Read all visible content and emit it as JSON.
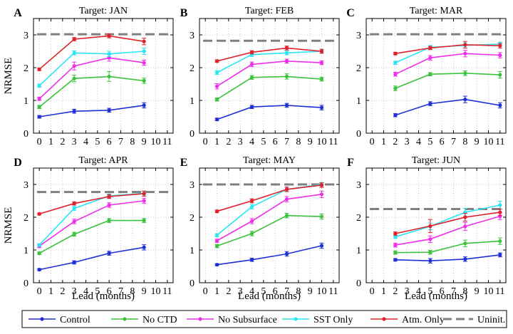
{
  "figure": {
    "ylabel": "NRMSE",
    "xlabel": "Lead (months)",
    "legend": [
      {
        "name": "Control",
        "color": "#1f2fd6",
        "style": "marker"
      },
      {
        "name": "No CTD",
        "color": "#3cc23c",
        "style": "marker"
      },
      {
        "name": "No Subsurface",
        "color": "#ee2ee8",
        "style": "marker"
      },
      {
        "name": "SST Only",
        "color": "#29e6f2",
        "style": "marker"
      },
      {
        "name": "Atm. Only",
        "color": "#e0202a",
        "style": "marker"
      },
      {
        "name": "Uninit.",
        "color": "#808080",
        "style": "dashed"
      }
    ]
  },
  "chart_data": [
    {
      "type": "line",
      "panel": "A",
      "title": "Target: JAN",
      "xlim": [
        -0.5,
        11.5
      ],
      "ylim": [
        0,
        3.5
      ],
      "xticks": [
        "0",
        "1",
        "2",
        "3",
        "4",
        "5",
        "6",
        "7",
        "8",
        "9",
        "10",
        "11"
      ],
      "yticks": [
        "0",
        "1",
        "2",
        "3"
      ],
      "grid": true,
      "uninit": 3.02,
      "x": [
        0,
        3,
        6,
        9
      ],
      "series": [
        {
          "name": "Control",
          "values": [
            0.5,
            0.67,
            0.7,
            0.85
          ],
          "err": [
            0.04,
            0.06,
            0.06,
            0.08
          ]
        },
        {
          "name": "No CTD",
          "values": [
            0.8,
            1.67,
            1.73,
            1.6
          ],
          "err": [
            0.05,
            0.1,
            0.15,
            0.08
          ]
        },
        {
          "name": "No Subsurface",
          "values": [
            1.05,
            2.05,
            2.3,
            2.15
          ],
          "err": [
            0.05,
            0.12,
            0.1,
            0.08
          ]
        },
        {
          "name": "SST Only",
          "values": [
            1.45,
            2.45,
            2.42,
            2.5
          ],
          "err": [
            0.05,
            0.06,
            0.08,
            0.1
          ]
        },
        {
          "name": "Atm. Only",
          "values": [
            1.95,
            2.87,
            2.97,
            2.8
          ],
          "err": [
            0.04,
            0.05,
            0.06,
            0.1
          ]
        }
      ]
    },
    {
      "type": "line",
      "panel": "B",
      "title": "Target: FEB",
      "xlim": [
        -0.5,
        11.5
      ],
      "ylim": [
        0,
        3.5
      ],
      "xticks": [
        "0",
        "1",
        "2",
        "3",
        "4",
        "5",
        "6",
        "7",
        "8",
        "9",
        "10",
        "11"
      ],
      "yticks": [
        "0",
        "1",
        "2",
        "3"
      ],
      "grid": true,
      "uninit": 2.82,
      "x": [
        1,
        4,
        7,
        10
      ],
      "series": [
        {
          "name": "Control",
          "values": [
            0.42,
            0.8,
            0.85,
            0.78
          ],
          "err": [
            0.04,
            0.05,
            0.06,
            0.07
          ]
        },
        {
          "name": "No CTD",
          "values": [
            1.03,
            1.7,
            1.73,
            1.65
          ],
          "err": [
            0.05,
            0.06,
            0.08,
            0.06
          ]
        },
        {
          "name": "No Subsurface",
          "values": [
            1.43,
            2.1,
            2.2,
            2.15
          ],
          "err": [
            0.08,
            0.07,
            0.06,
            0.06
          ]
        },
        {
          "name": "SST Only",
          "values": [
            1.85,
            2.4,
            2.45,
            2.5
          ],
          "err": [
            0.06,
            0.06,
            0.06,
            0.06
          ]
        },
        {
          "name": "Atm. Only",
          "values": [
            2.2,
            2.47,
            2.6,
            2.5
          ],
          "err": [
            0.04,
            0.05,
            0.06,
            0.06
          ]
        }
      ]
    },
    {
      "type": "line",
      "panel": "C",
      "title": "Target: MAR",
      "xlim": [
        -0.5,
        11.5
      ],
      "ylim": [
        0,
        3.5
      ],
      "xticks": [
        "0",
        "1",
        "2",
        "3",
        "4",
        "5",
        "6",
        "7",
        "8",
        "9",
        "10",
        "11"
      ],
      "yticks": [
        "0",
        "1",
        "2",
        "3"
      ],
      "grid": true,
      "uninit": 3.02,
      "x": [
        2,
        5,
        8,
        11
      ],
      "series": [
        {
          "name": "Control",
          "values": [
            0.55,
            0.9,
            1.03,
            0.85
          ],
          "err": [
            0.05,
            0.06,
            0.1,
            0.08
          ]
        },
        {
          "name": "No CTD",
          "values": [
            1.37,
            1.8,
            1.83,
            1.78
          ],
          "err": [
            0.07,
            0.05,
            0.07,
            0.1
          ]
        },
        {
          "name": "No Subsurface",
          "values": [
            1.8,
            2.3,
            2.43,
            2.38
          ],
          "err": [
            0.06,
            0.07,
            0.1,
            0.08
          ]
        },
        {
          "name": "SST Only",
          "values": [
            2.15,
            2.62,
            2.68,
            2.72
          ],
          "err": [
            0.05,
            0.06,
            0.08,
            0.06
          ]
        },
        {
          "name": "Atm. Only",
          "values": [
            2.43,
            2.6,
            2.7,
            2.67
          ],
          "err": [
            0.04,
            0.05,
            0.1,
            0.07
          ]
        }
      ]
    },
    {
      "type": "line",
      "panel": "D",
      "title": "Target: APR",
      "xlim": [
        -0.5,
        11.5
      ],
      "ylim": [
        0,
        3.5
      ],
      "xticks": [
        "0",
        "1",
        "2",
        "3",
        "4",
        "5",
        "6",
        "7",
        "8",
        "9",
        "10",
        "11"
      ],
      "yticks": [
        "0",
        "1",
        "2",
        "3"
      ],
      "grid": true,
      "uninit": 2.77,
      "x": [
        0,
        3,
        6,
        9
      ],
      "series": [
        {
          "name": "Control",
          "values": [
            0.4,
            0.62,
            0.9,
            1.08
          ],
          "err": [
            0.03,
            0.05,
            0.06,
            0.08
          ]
        },
        {
          "name": "No CTD",
          "values": [
            0.9,
            1.48,
            1.9,
            1.9
          ],
          "err": [
            0.04,
            0.06,
            0.06,
            0.06
          ]
        },
        {
          "name": "No Subsurface",
          "values": [
            1.12,
            1.87,
            2.37,
            2.5
          ],
          "err": [
            0.05,
            0.07,
            0.07,
            0.08
          ]
        },
        {
          "name": "SST Only",
          "values": [
            1.15,
            2.27,
            2.65,
            2.73
          ],
          "err": [
            0.04,
            0.06,
            0.06,
            0.06
          ]
        },
        {
          "name": "Atm. Only",
          "values": [
            2.1,
            2.42,
            2.63,
            2.72
          ],
          "err": [
            0.03,
            0.05,
            0.06,
            0.08
          ]
        }
      ]
    },
    {
      "type": "line",
      "panel": "E",
      "title": "Target: MAY",
      "xlim": [
        -0.5,
        11.5
      ],
      "ylim": [
        0,
        3.5
      ],
      "xticks": [
        "0",
        "1",
        "2",
        "3",
        "4",
        "5",
        "6",
        "7",
        "8",
        "9",
        "10",
        "11"
      ],
      "yticks": [
        "0",
        "1",
        "2",
        "3"
      ],
      "grid": true,
      "uninit": 3.0,
      "x": [
        1,
        4,
        7,
        10
      ],
      "series": [
        {
          "name": "Control",
          "values": [
            0.55,
            0.7,
            0.88,
            1.13
          ],
          "err": [
            0.03,
            0.05,
            0.07,
            0.08
          ]
        },
        {
          "name": "No CTD",
          "values": [
            1.12,
            1.5,
            2.05,
            2.02
          ],
          "err": [
            0.05,
            0.07,
            0.07,
            0.08
          ]
        },
        {
          "name": "No Subsurface",
          "values": [
            1.28,
            1.88,
            2.55,
            2.7
          ],
          "err": [
            0.05,
            0.08,
            0.08,
            0.1
          ]
        },
        {
          "name": "SST Only",
          "values": [
            1.45,
            2.32,
            2.85,
            3.0
          ],
          "err": [
            0.05,
            0.07,
            0.06,
            0.06
          ]
        },
        {
          "name": "Atm. Only",
          "values": [
            2.18,
            2.5,
            2.85,
            2.98
          ],
          "err": [
            0.04,
            0.06,
            0.07,
            0.07
          ]
        }
      ]
    },
    {
      "type": "line",
      "panel": "F",
      "title": "Target: JUN",
      "xlim": [
        -0.5,
        11.5
      ],
      "ylim": [
        0,
        3.5
      ],
      "xticks": [
        "0",
        "1",
        "2",
        "3",
        "4",
        "5",
        "6",
        "7",
        "8",
        "9",
        "10",
        "11"
      ],
      "yticks": [
        "0",
        "1",
        "2",
        "3"
      ],
      "grid": true,
      "uninit": 2.25,
      "x": [
        2,
        5,
        8,
        11
      ],
      "series": [
        {
          "name": "Control",
          "values": [
            0.7,
            0.67,
            0.72,
            0.85
          ],
          "err": [
            0.04,
            0.07,
            0.07,
            0.06
          ]
        },
        {
          "name": "No CTD",
          "values": [
            0.92,
            0.93,
            1.2,
            1.27
          ],
          "err": [
            0.05,
            0.06,
            0.1,
            0.1
          ]
        },
        {
          "name": "No Subsurface",
          "values": [
            1.15,
            1.33,
            1.72,
            2.03
          ],
          "err": [
            0.06,
            0.1,
            0.12,
            0.1
          ]
        },
        {
          "name": "SST Only",
          "values": [
            1.4,
            1.72,
            2.15,
            2.37
          ],
          "err": [
            0.05,
            0.1,
            0.12,
            0.12
          ]
        },
        {
          "name": "Atm. Only",
          "values": [
            1.5,
            1.73,
            2.0,
            2.15
          ],
          "err": [
            0.05,
            0.2,
            0.12,
            0.1
          ]
        }
      ]
    }
  ]
}
